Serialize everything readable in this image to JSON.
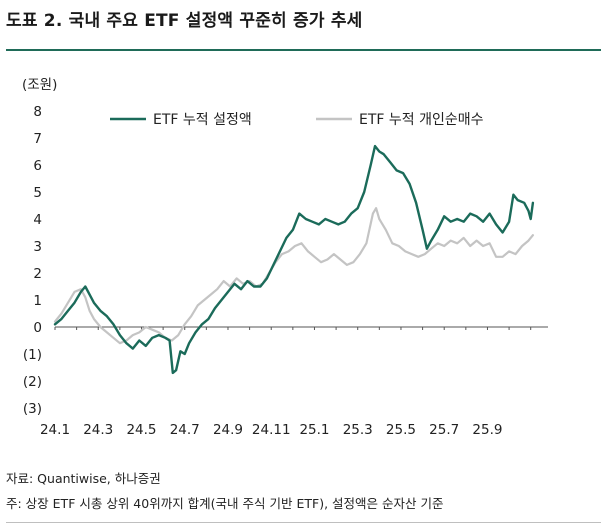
{
  "title": "도표 2. 국내 주요 ETF 설정액 꾸준히 증가 추세",
  "notes": {
    "source": "자료: Quantiwise, 하나증권",
    "footnote": "주: 상장 ETF 시총 상위 40위까지 합계(국내 주식 기반 ETF), 설정액은 순자산 기준"
  },
  "colors": {
    "accent": "#1f6b58",
    "series1": "#1b6b5a",
    "series2": "#c4c4c4"
  },
  "chart_data": {
    "type": "line",
    "ylabel": "(조원)",
    "ylim": [
      -3,
      8
    ],
    "y_ticks": [
      {
        "value": 8,
        "label": "8"
      },
      {
        "value": 7,
        "label": "7"
      },
      {
        "value": 6,
        "label": "6"
      },
      {
        "value": 5,
        "label": "5"
      },
      {
        "value": 4,
        "label": "4"
      },
      {
        "value": 3,
        "label": "3"
      },
      {
        "value": 2,
        "label": "2"
      },
      {
        "value": 1,
        "label": "1"
      },
      {
        "value": 0,
        "label": "0"
      },
      {
        "value": -1,
        "label": "(1)"
      },
      {
        "value": -2,
        "label": "(2)"
      },
      {
        "value": -3,
        "label": "(3)"
      }
    ],
    "x_ticks": [
      {
        "value": 0,
        "label": "24.1"
      },
      {
        "value": 2,
        "label": "24.3"
      },
      {
        "value": 4,
        "label": "24.5"
      },
      {
        "value": 6,
        "label": "24.7"
      },
      {
        "value": 8,
        "label": "24.9"
      },
      {
        "value": 10,
        "label": "24.11"
      },
      {
        "value": 12,
        "label": "25.1"
      },
      {
        "value": 14,
        "label": "25.3"
      },
      {
        "value": 16,
        "label": "25.5"
      },
      {
        "value": 18,
        "label": "25.7"
      },
      {
        "value": 20,
        "label": "25.9"
      }
    ],
    "xlim": [
      0,
      22.8
    ],
    "x_unit": "months since 24.1",
    "grid": false,
    "legend_position": "top",
    "series": [
      {
        "name": "ETF 누적 설정액",
        "color": "#1b6b5a",
        "points": [
          [
            0.0,
            0.1
          ],
          [
            0.3,
            0.3
          ],
          [
            0.6,
            0.6
          ],
          [
            0.9,
            0.9
          ],
          [
            1.2,
            1.3
          ],
          [
            1.4,
            1.5
          ],
          [
            1.6,
            1.2
          ],
          [
            1.8,
            0.9
          ],
          [
            2.1,
            0.6
          ],
          [
            2.4,
            0.4
          ],
          [
            2.7,
            0.1
          ],
          [
            3.0,
            -0.3
          ],
          [
            3.3,
            -0.6
          ],
          [
            3.6,
            -0.8
          ],
          [
            3.9,
            -0.5
          ],
          [
            4.2,
            -0.7
          ],
          [
            4.5,
            -0.4
          ],
          [
            4.8,
            -0.3
          ],
          [
            5.1,
            -0.4
          ],
          [
            5.3,
            -0.5
          ],
          [
            5.45,
            -1.7
          ],
          [
            5.6,
            -1.6
          ],
          [
            5.8,
            -0.9
          ],
          [
            6.0,
            -1.0
          ],
          [
            6.2,
            -0.6
          ],
          [
            6.5,
            -0.2
          ],
          [
            6.8,
            0.1
          ],
          [
            7.1,
            0.3
          ],
          [
            7.4,
            0.7
          ],
          [
            7.7,
            1.0
          ],
          [
            8.0,
            1.3
          ],
          [
            8.3,
            1.6
          ],
          [
            8.6,
            1.4
          ],
          [
            8.9,
            1.7
          ],
          [
            9.2,
            1.5
          ],
          [
            9.5,
            1.5
          ],
          [
            9.8,
            1.8
          ],
          [
            10.1,
            2.3
          ],
          [
            10.4,
            2.8
          ],
          [
            10.7,
            3.3
          ],
          [
            11.0,
            3.6
          ],
          [
            11.3,
            4.2
          ],
          [
            11.6,
            4.0
          ],
          [
            11.9,
            3.9
          ],
          [
            12.2,
            3.8
          ],
          [
            12.5,
            4.0
          ],
          [
            12.8,
            3.9
          ],
          [
            13.1,
            3.8
          ],
          [
            13.4,
            3.9
          ],
          [
            13.7,
            4.2
          ],
          [
            14.0,
            4.4
          ],
          [
            14.3,
            5.0
          ],
          [
            14.6,
            6.0
          ],
          [
            14.8,
            6.7
          ],
          [
            15.0,
            6.5
          ],
          [
            15.2,
            6.4
          ],
          [
            15.5,
            6.1
          ],
          [
            15.8,
            5.8
          ],
          [
            16.1,
            5.7
          ],
          [
            16.4,
            5.3
          ],
          [
            16.7,
            4.6
          ],
          [
            17.0,
            3.6
          ],
          [
            17.2,
            2.9
          ],
          [
            17.4,
            3.2
          ],
          [
            17.7,
            3.6
          ],
          [
            18.0,
            4.1
          ],
          [
            18.3,
            3.9
          ],
          [
            18.6,
            4.0
          ],
          [
            18.9,
            3.9
          ],
          [
            19.2,
            4.2
          ],
          [
            19.5,
            4.1
          ],
          [
            19.8,
            3.9
          ],
          [
            20.1,
            4.2
          ],
          [
            20.4,
            3.8
          ],
          [
            20.7,
            3.5
          ],
          [
            21.0,
            3.9
          ],
          [
            21.2,
            4.9
          ],
          [
            21.4,
            4.7
          ],
          [
            21.7,
            4.6
          ],
          [
            21.9,
            4.3
          ],
          [
            22.0,
            4.0
          ],
          [
            22.1,
            4.6
          ]
        ]
      },
      {
        "name": "ETF 누적 개인순매수",
        "color": "#c4c4c4",
        "points": [
          [
            0.0,
            0.2
          ],
          [
            0.3,
            0.5
          ],
          [
            0.6,
            0.9
          ],
          [
            0.9,
            1.3
          ],
          [
            1.2,
            1.4
          ],
          [
            1.4,
            1.1
          ],
          [
            1.6,
            0.6
          ],
          [
            1.8,
            0.3
          ],
          [
            2.1,
            0.0
          ],
          [
            2.4,
            -0.2
          ],
          [
            2.7,
            -0.4
          ],
          [
            3.0,
            -0.6
          ],
          [
            3.3,
            -0.5
          ],
          [
            3.6,
            -0.3
          ],
          [
            3.9,
            -0.2
          ],
          [
            4.2,
            0.0
          ],
          [
            4.5,
            -0.1
          ],
          [
            4.8,
            -0.2
          ],
          [
            5.1,
            -0.4
          ],
          [
            5.4,
            -0.5
          ],
          [
            5.7,
            -0.3
          ],
          [
            6.0,
            0.1
          ],
          [
            6.3,
            0.4
          ],
          [
            6.6,
            0.8
          ],
          [
            6.9,
            1.0
          ],
          [
            7.2,
            1.2
          ],
          [
            7.5,
            1.4
          ],
          [
            7.8,
            1.7
          ],
          [
            8.1,
            1.5
          ],
          [
            8.4,
            1.8
          ],
          [
            8.7,
            1.6
          ],
          [
            9.0,
            1.7
          ],
          [
            9.3,
            1.5
          ],
          [
            9.6,
            1.6
          ],
          [
            9.9,
            2.0
          ],
          [
            10.2,
            2.4
          ],
          [
            10.5,
            2.7
          ],
          [
            10.8,
            2.8
          ],
          [
            11.1,
            3.0
          ],
          [
            11.4,
            3.1
          ],
          [
            11.7,
            2.8
          ],
          [
            12.0,
            2.6
          ],
          [
            12.3,
            2.4
          ],
          [
            12.6,
            2.5
          ],
          [
            12.9,
            2.7
          ],
          [
            13.2,
            2.5
          ],
          [
            13.5,
            2.3
          ],
          [
            13.8,
            2.4
          ],
          [
            14.1,
            2.7
          ],
          [
            14.4,
            3.1
          ],
          [
            14.7,
            4.2
          ],
          [
            14.85,
            4.4
          ],
          [
            15.0,
            4.0
          ],
          [
            15.3,
            3.6
          ],
          [
            15.6,
            3.1
          ],
          [
            15.9,
            3.0
          ],
          [
            16.2,
            2.8
          ],
          [
            16.5,
            2.7
          ],
          [
            16.8,
            2.6
          ],
          [
            17.1,
            2.7
          ],
          [
            17.4,
            2.9
          ],
          [
            17.7,
            3.1
          ],
          [
            18.0,
            3.0
          ],
          [
            18.3,
            3.2
          ],
          [
            18.6,
            3.1
          ],
          [
            18.9,
            3.3
          ],
          [
            19.2,
            3.0
          ],
          [
            19.5,
            3.2
          ],
          [
            19.8,
            3.0
          ],
          [
            20.1,
            3.1
          ],
          [
            20.4,
            2.6
          ],
          [
            20.7,
            2.6
          ],
          [
            21.0,
            2.8
          ],
          [
            21.3,
            2.7
          ],
          [
            21.6,
            3.0
          ],
          [
            21.9,
            3.2
          ],
          [
            22.1,
            3.4
          ]
        ]
      }
    ]
  }
}
